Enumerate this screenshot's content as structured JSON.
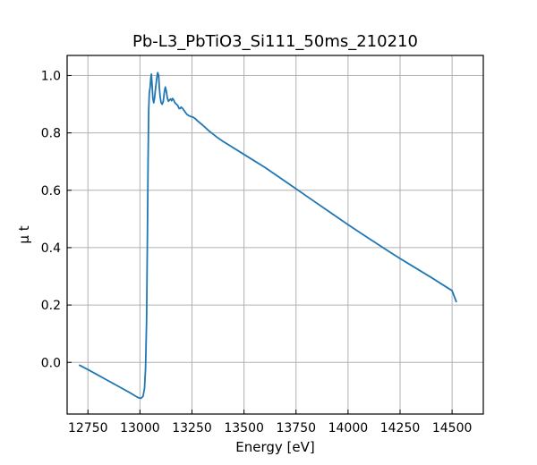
{
  "chart_data": {
    "type": "line",
    "title": "Pb-L3_PbTiO3_Si111_50ms_210210",
    "xlabel": "Energy [eV]",
    "ylabel": "μ t",
    "xlim": [
      12650,
      14650
    ],
    "ylim": [
      -0.18,
      1.07
    ],
    "xticks": [
      12750,
      13000,
      13250,
      13500,
      13750,
      14000,
      14250,
      14500
    ],
    "yticks": [
      0.0,
      0.2,
      0.4,
      0.6,
      0.8,
      1.0
    ],
    "xtick_labels": [
      "12750",
      "13000",
      "13250",
      "13500",
      "13750",
      "14000",
      "14250",
      "14500"
    ],
    "ytick_labels": [
      "0.0",
      "0.2",
      "0.4",
      "0.6",
      "0.8",
      "1.0"
    ],
    "grid": true,
    "legend": false,
    "series": [
      {
        "color": "#1f77b4",
        "x": [
          12710,
          12750,
          12800,
          12850,
          12900,
          12950,
          12980,
          12995,
          13005,
          13015,
          13022,
          13027,
          13032,
          13036,
          13039,
          13042,
          13045,
          13047,
          13049,
          13052,
          13055,
          13058,
          13062,
          13066,
          13070,
          13075,
          13080,
          13085,
          13090,
          13093,
          13097,
          13102,
          13107,
          13112,
          13117,
          13122,
          13127,
          13132,
          13137,
          13142,
          13147,
          13152,
          13157,
          13162,
          13168,
          13175,
          13182,
          13188,
          13193,
          13198,
          13205,
          13212,
          13218,
          13225,
          13235,
          13245,
          13255,
          13265,
          13280,
          13300,
          13330,
          13370,
          13400,
          13500,
          13600,
          13700,
          13750,
          13800,
          13900,
          14000,
          14100,
          14200,
          14250,
          14300,
          14400,
          14500,
          14520
        ],
        "y": [
          -0.01,
          -0.025,
          -0.045,
          -0.065,
          -0.085,
          -0.105,
          -0.118,
          -0.124,
          -0.125,
          -0.118,
          -0.09,
          -0.02,
          0.15,
          0.45,
          0.7,
          0.88,
          0.94,
          0.95,
          0.96,
          0.99,
          1.005,
          0.97,
          0.92,
          0.905,
          0.92,
          0.955,
          0.985,
          1.01,
          1.0,
          0.96,
          0.925,
          0.905,
          0.9,
          0.91,
          0.94,
          0.96,
          0.945,
          0.92,
          0.91,
          0.915,
          0.918,
          0.912,
          0.92,
          0.915,
          0.905,
          0.9,
          0.895,
          0.885,
          0.885,
          0.89,
          0.885,
          0.878,
          0.872,
          0.865,
          0.86,
          0.857,
          0.855,
          0.85,
          0.84,
          0.828,
          0.808,
          0.785,
          0.77,
          0.725,
          0.68,
          0.63,
          0.605,
          0.58,
          0.53,
          0.48,
          0.432,
          0.385,
          0.362,
          0.34,
          0.296,
          0.25,
          0.212
        ]
      }
    ]
  }
}
